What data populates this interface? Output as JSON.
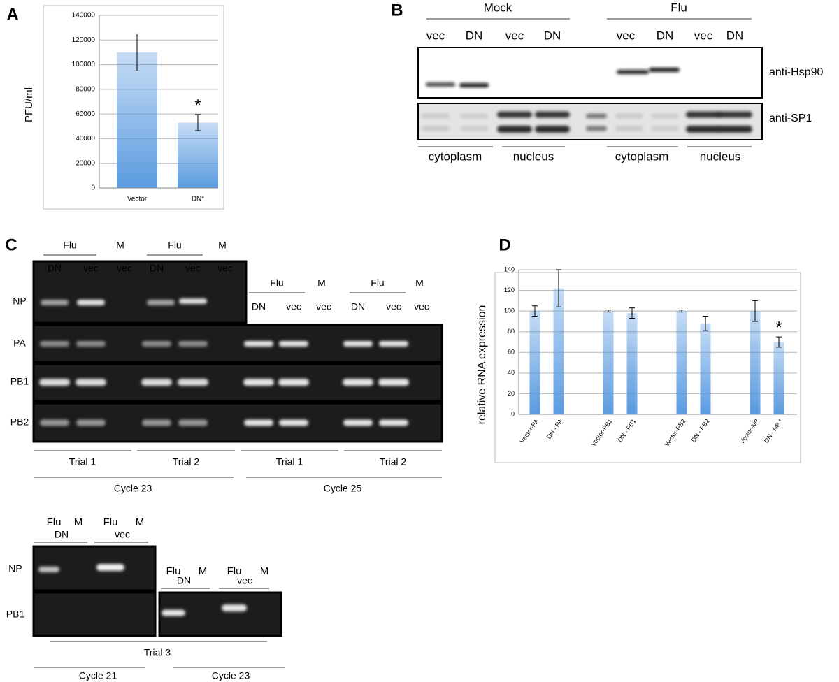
{
  "chart_data": [
    {
      "type": "bar",
      "panel_label": "A",
      "y_label": "PFU/ml",
      "categories": [
        "Vector",
        "DN*"
      ],
      "values": [
        110000,
        53000
      ],
      "errors": [
        15000,
        6500
      ],
      "color": "#5b9be0",
      "ylim": [
        0,
        140000
      ],
      "yticks": [
        0,
        20000,
        40000,
        60000,
        80000,
        100000,
        120000,
        140000
      ],
      "grid": true,
      "annotations": [
        "*"
      ]
    },
    {
      "type": "bar",
      "panel_label": "D",
      "y_label": "relative RNA expression",
      "categories": [
        "Vector-PA",
        "DN - PA",
        "Vector-PB1",
        "DN - PB1",
        "Vector-PB2",
        "DN - PB2",
        "Vector-NP",
        "DN - NP *"
      ],
      "values": [
        100,
        122,
        100,
        98,
        100,
        88,
        100,
        70
      ],
      "errors": [
        5,
        18,
        1,
        5,
        1,
        7,
        10,
        5
      ],
      "color": "#5b9be0",
      "ylim": [
        0,
        140
      ],
      "yticks": [
        0,
        20,
        40,
        60,
        80,
        100,
        120,
        140
      ],
      "grid": true,
      "annotations": [
        "*"
      ]
    }
  ],
  "panel_b": {
    "label": "B",
    "groups": [
      "Mock",
      "Flu"
    ],
    "lanes": [
      "vec",
      "DN",
      "vec",
      "DN",
      "vec",
      "DN",
      "vec",
      "DN"
    ],
    "blots": [
      "anti-Hsp90",
      "anti-SP1"
    ],
    "fractions": [
      "cytoplasm",
      "nucleus",
      "cytoplasm",
      "nucleus"
    ]
  },
  "panel_c": {
    "label": "C",
    "top": {
      "headers": [
        "Flu",
        "M",
        "Flu",
        "M",
        "Flu",
        "M",
        "Flu",
        "M"
      ],
      "lanes": [
        "DN",
        "vec",
        "vec",
        "DN",
        "vec",
        "vec",
        "DN",
        "vec",
        "vec",
        "DN",
        "vec",
        "vec"
      ],
      "rows": [
        "NP",
        "PA",
        "PB1",
        "PB2"
      ],
      "trials": [
        "Trial 1",
        "Trial 2",
        "Trial 1",
        "Trial 2"
      ],
      "cycles": [
        "Cycle 23",
        "Cycle 25"
      ]
    },
    "bottom": {
      "headers": [
        "Flu",
        "M",
        "Flu",
        "M",
        "Flu",
        "M",
        "Flu",
        "M"
      ],
      "lanes": [
        "DN",
        "vec",
        "DN",
        "vec"
      ],
      "rows": [
        "NP",
        "PB1"
      ],
      "trial": "Trial 3",
      "cycles": [
        "Cycle 21",
        "Cycle 23"
      ]
    }
  }
}
